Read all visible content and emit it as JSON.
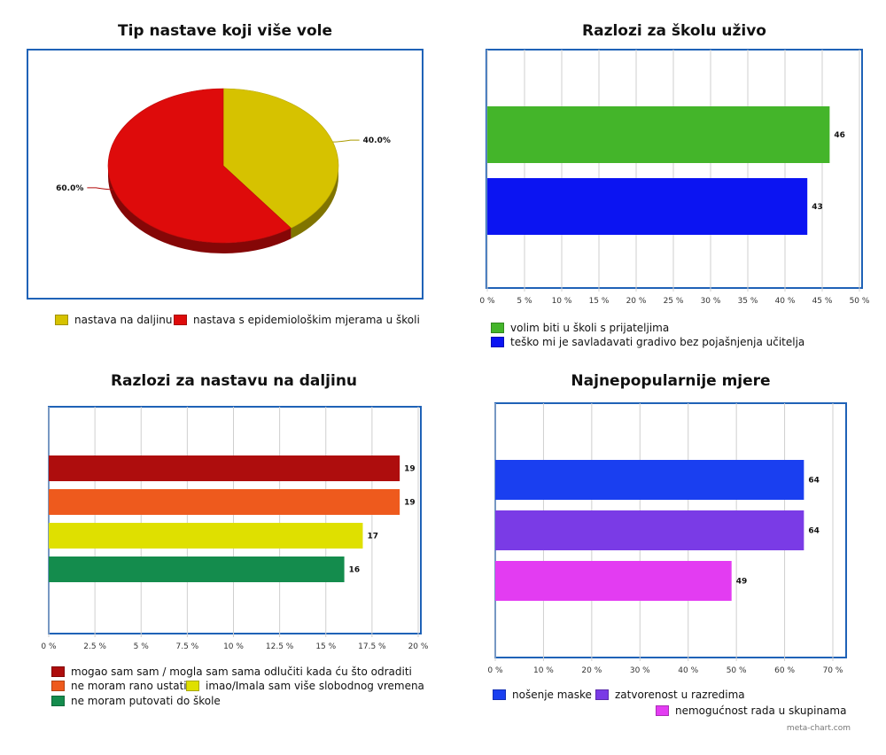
{
  "chart_data": [
    {
      "type": "pie",
      "title": "Tip nastave koji više vole",
      "slices": [
        {
          "label": "nastava na daljinu",
          "value": 40.0,
          "display": "40.0%",
          "color": "#d6c200"
        },
        {
          "label": "nastava s epidemiološkim mjerama u školi",
          "value": 60.0,
          "display": "60.0%",
          "color": "#de0b0b"
        }
      ]
    },
    {
      "type": "bar",
      "orientation": "horizontal",
      "title": "Razlozi za školu uživo",
      "series": [
        {
          "name": "volim biti u školi s prijateljima",
          "value": 46,
          "label": "46",
          "color": "#44b52a"
        },
        {
          "name": "teško mi je savladavati gradivo bez pojašnjenja učitelja",
          "value": 43,
          "label": "43",
          "color": "#0b14f2"
        }
      ],
      "xlim": [
        0,
        50
      ],
      "ticks": [
        "0 %",
        "5 %",
        "10 %",
        "15 %",
        "20 %",
        "25 %",
        "30 %",
        "35 %",
        "40 %",
        "45 %",
        "50 %"
      ]
    },
    {
      "type": "bar",
      "orientation": "horizontal",
      "title": "Razlozi za nastavu na daljinu",
      "series": [
        {
          "name": "mogao sam sam / mogla sam sama odlučiti kada ću što odraditi",
          "value": 19,
          "label": "19",
          "color": "#ae0d0d"
        },
        {
          "name": "ne moram rano ustati",
          "value": 19,
          "label": "19",
          "color": "#ee5a1d"
        },
        {
          "name": "imao/Imala sam više slobodnog vremena",
          "value": 17,
          "label": "17",
          "color": "#dfe000"
        },
        {
          "name": "ne moram putovati do škole",
          "value": 16,
          "label": "16",
          "color": "#148c4d"
        }
      ],
      "xlim": [
        0,
        20
      ],
      "ticks": [
        "0 %",
        "2.5 %",
        "5 %",
        "7.5 %",
        "10 %",
        "12.5 %",
        "15 %",
        "17.5 %",
        "20 %"
      ]
    },
    {
      "type": "bar",
      "orientation": "horizontal",
      "title": "Najnepopularnije mjere",
      "series": [
        {
          "name": "nošenje maske",
          "value": 64,
          "label": "64",
          "color": "#1a3ff0"
        },
        {
          "name": "zatvorenost u razredima",
          "value": 64,
          "label": "64",
          "color": "#7a3be6"
        },
        {
          "name": "nemogućnost rada u skupinama",
          "value": 49,
          "label": "49",
          "color": "#e33cf2"
        }
      ],
      "xlim": [
        0,
        70
      ],
      "ticks": [
        "0 %",
        "10 %",
        "20 %",
        "30 %",
        "40 %",
        "50 %",
        "60 %",
        "70 %"
      ]
    }
  ],
  "watermark": "meta-chart.com"
}
